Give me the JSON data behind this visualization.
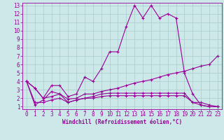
{
  "xlabel": "Windchill (Refroidissement éolien,°C)",
  "bg_color": "#cce8e8",
  "grid_color": "#aacccc",
  "line_color": "#990099",
  "xlim": [
    -0.5,
    23.5
  ],
  "ylim": [
    0.7,
    13.3
  ],
  "xticks": [
    0,
    1,
    2,
    3,
    4,
    5,
    6,
    7,
    8,
    9,
    10,
    11,
    12,
    13,
    14,
    15,
    16,
    17,
    18,
    19,
    20,
    21,
    22,
    23
  ],
  "yticks": [
    1,
    2,
    3,
    4,
    5,
    6,
    7,
    8,
    9,
    10,
    11,
    12,
    13
  ],
  "lines": [
    [
      4.0,
      3.2,
      2.0,
      3.5,
      3.5,
      2.2,
      2.5,
      4.5,
      4.0,
      5.5,
      7.5,
      7.5,
      10.5,
      13.0,
      11.5,
      13.0,
      11.5,
      12.0,
      11.5,
      5.0,
      2.5,
      1.2,
      1.0,
      1.0
    ],
    [
      4.0,
      3.2,
      2.0,
      2.2,
      2.5,
      1.9,
      2.0,
      2.5,
      2.5,
      2.8,
      3.0,
      3.2,
      3.5,
      3.8,
      4.0,
      4.2,
      4.5,
      4.8,
      5.0,
      5.2,
      5.5,
      5.8,
      6.0,
      7.0
    ],
    [
      4.0,
      1.5,
      1.5,
      1.8,
      2.0,
      1.5,
      1.8,
      2.0,
      2.0,
      2.2,
      2.3,
      2.3,
      2.3,
      2.3,
      2.3,
      2.3,
      2.3,
      2.3,
      2.3,
      2.3,
      1.5,
      1.5,
      1.2,
      1.0
    ],
    [
      4.0,
      1.2,
      1.8,
      2.8,
      2.5,
      1.5,
      1.8,
      2.0,
      2.2,
      2.5,
      2.6,
      2.6,
      2.6,
      2.6,
      2.6,
      2.6,
      2.6,
      2.6,
      2.6,
      2.6,
      1.5,
      1.2,
      1.0,
      1.0
    ]
  ],
  "tick_fontsize": 5.5,
  "xlabel_fontsize": 5.5
}
